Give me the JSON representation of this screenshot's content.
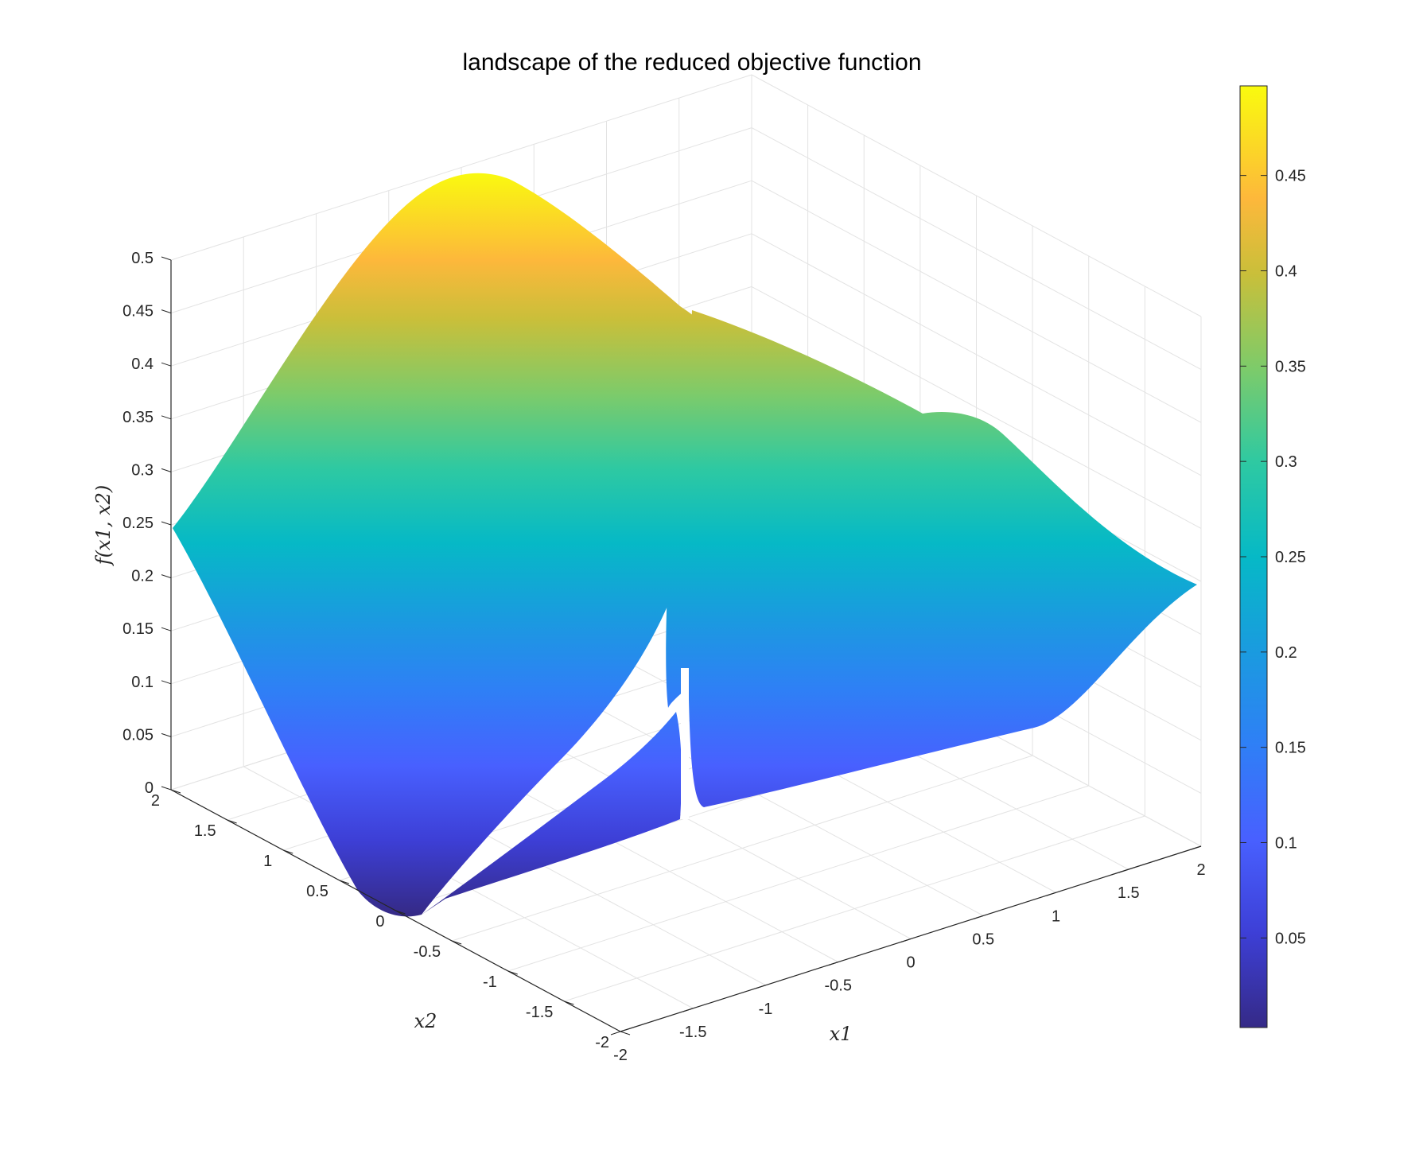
{
  "title": "landscape of the reduced objective function",
  "chart_data": {
    "type": "surface",
    "title": "landscape of the reduced objective function",
    "xlabel": "x1",
    "ylabel": "x2",
    "zlabel": "f(x1, x2)",
    "xlim": [
      -2,
      2
    ],
    "ylim": [
      -2,
      2
    ],
    "zlim": [
      0,
      0.5
    ],
    "x_ticks": [
      "-2",
      "-1.5",
      "-1",
      "-0.5",
      "0",
      "0.5",
      "1",
      "1.5",
      "2"
    ],
    "y_ticks": [
      "-2",
      "-1.5",
      "-1",
      "-0.5",
      "0",
      "0.5",
      "1",
      "1.5",
      "2"
    ],
    "z_ticks": [
      "0",
      "0.05",
      "0.1",
      "0.15",
      "0.2",
      "0.25",
      "0.3",
      "0.35",
      "0.4",
      "0.45",
      "0.5"
    ],
    "colorbar": {
      "range": [
        0.003,
        0.497
      ],
      "ticks": [
        "0.05",
        "0.1",
        "0.15",
        "0.2",
        "0.25",
        "0.3",
        "0.35",
        "0.4",
        "0.45"
      ],
      "colormap": "parula"
    },
    "surface_samples": [
      {
        "x1": -2,
        "x2": 2,
        "f": 0.25
      },
      {
        "x1": -2,
        "x2": 0,
        "f": 0.0
      },
      {
        "x1": -2,
        "x2": -2,
        "f": 0.25
      },
      {
        "x1": 0,
        "x2": 1,
        "f": 0.5
      },
      {
        "x1": 0,
        "x2": 0,
        "f": 0.0
      },
      {
        "x1": 0,
        "x2": -1,
        "f": 0.5
      },
      {
        "x1": 2,
        "x2": 2,
        "f": 0.25
      },
      {
        "x1": 2,
        "x2": 0,
        "f": 0.0
      },
      {
        "x1": 2,
        "x2": -2,
        "f": 0.25
      }
    ],
    "grid": true
  }
}
